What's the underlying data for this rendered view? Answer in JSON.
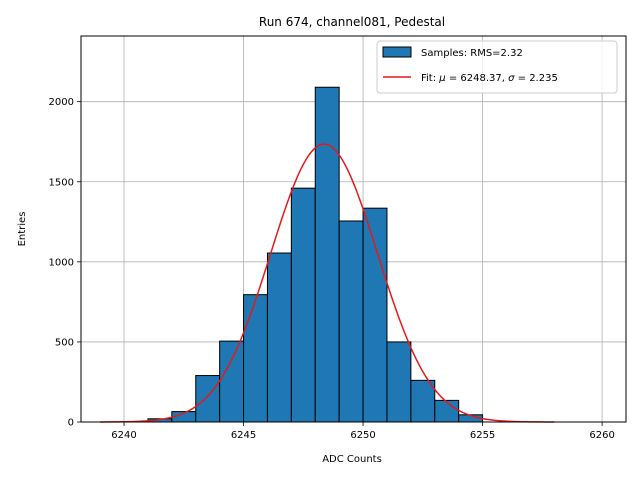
{
  "chart_data": {
    "type": "bar",
    "title": "Run 674, channel081, Pedestal",
    "xlabel": "ADC Counts",
    "ylabel": "Entries",
    "xlim": [
      6238.2,
      6261.0
    ],
    "ylim": [
      0,
      2410
    ],
    "xticks": [
      6240,
      6245,
      6250,
      6255,
      6260
    ],
    "yticks": [
      0,
      500,
      1000,
      1500,
      2000
    ],
    "grid": true,
    "legend_position": "top-right",
    "bar_color": "#1f77b4",
    "fit_color": "#e31a1c",
    "bins": [
      {
        "x0": 6241,
        "x1": 6242,
        "value": 20
      },
      {
        "x0": 6242,
        "x1": 6243,
        "value": 65
      },
      {
        "x0": 6243,
        "x1": 6244,
        "value": 290
      },
      {
        "x0": 6244,
        "x1": 6245,
        "value": 505
      },
      {
        "x0": 6245,
        "x1": 6246,
        "value": 795
      },
      {
        "x0": 6246,
        "x1": 6247,
        "value": 1055
      },
      {
        "x0": 6247,
        "x1": 6248,
        "value": 1460
      },
      {
        "x0": 6248,
        "x1": 6249,
        "value": 2090
      },
      {
        "x0": 6249,
        "x1": 6250,
        "value": 1255
      },
      {
        "x0": 6250,
        "x1": 6251,
        "value": 1335
      },
      {
        "x0": 6251,
        "x1": 6252,
        "value": 500
      },
      {
        "x0": 6252,
        "x1": 6253,
        "value": 260
      },
      {
        "x0": 6253,
        "x1": 6254,
        "value": 135
      },
      {
        "x0": 6254,
        "x1": 6255,
        "value": 45
      }
    ],
    "fit": {
      "type": "gaussian",
      "mu": 6248.37,
      "sigma": 2.235,
      "amplitude": 1735,
      "x_range": [
        6239,
        6258
      ]
    },
    "legend": [
      {
        "label": "Samples: RMS=2.32",
        "kind": "patch"
      },
      {
        "label_prefix": "Fit: ",
        "mu_symbol": "μ",
        "mu_text": " = 6248.37, ",
        "sigma_symbol": "σ",
        "sigma_text": " = 2.235",
        "kind": "line"
      }
    ]
  }
}
